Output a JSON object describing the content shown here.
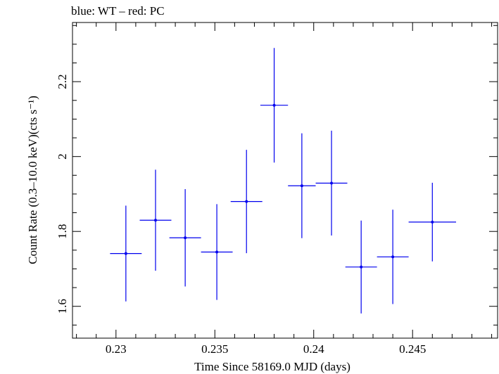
{
  "title": "blue: WT – red: PC",
  "chart_data": {
    "type": "scatter",
    "title": "blue: WT – red: PC",
    "xlabel": "Time Since 58169.0 MJD (days)",
    "ylabel": "Count Rate (0.3–10.0 keV)(cts s⁻¹)",
    "xlim": [
      0.2278,
      0.2493
    ],
    "ylim": [
      1.515,
      2.358
    ],
    "x_ticks": [
      {
        "value": 0.23,
        "label": "0.23"
      },
      {
        "value": 0.235,
        "label": "0.235"
      },
      {
        "value": 0.24,
        "label": "0.24"
      },
      {
        "value": 0.245,
        "label": "0.245"
      }
    ],
    "y_ticks": [
      {
        "value": 1.6,
        "label": "1.6"
      },
      {
        "value": 1.8,
        "label": "1.8"
      },
      {
        "value": 2.0,
        "label": "2"
      },
      {
        "value": 2.2,
        "label": "2.2"
      }
    ],
    "grid": false,
    "series": [
      {
        "color": "#0000ee",
        "points": [
          {
            "x": 0.2305,
            "xerr": 0.0008,
            "y": 1.741,
            "yerr": 0.128
          },
          {
            "x": 0.232,
            "xerr": 0.0008,
            "y": 1.83,
            "yerr": 0.135
          },
          {
            "x": 0.2335,
            "xerr": 0.0008,
            "y": 1.783,
            "yerr": 0.13
          },
          {
            "x": 0.2351,
            "xerr": 0.0008,
            "y": 1.745,
            "yerr": 0.128
          },
          {
            "x": 0.2366,
            "xerr": 0.0008,
            "y": 1.88,
            "yerr": 0.138
          },
          {
            "x": 0.238,
            "xerr": 0.0007,
            "y": 2.137,
            "yerr": 0.153
          },
          {
            "x": 0.2394,
            "xerr": 0.0007,
            "y": 1.922,
            "yerr": 0.14
          },
          {
            "x": 0.2409,
            "xerr": 0.0008,
            "y": 1.929,
            "yerr": 0.14
          },
          {
            "x": 0.2424,
            "xerr": 0.0008,
            "y": 1.705,
            "yerr": 0.124
          },
          {
            "x": 0.244,
            "xerr": 0.0008,
            "y": 1.732,
            "yerr": 0.126
          },
          {
            "x": 0.246,
            "xerr": 0.0012,
            "y": 1.825,
            "yerr": 0.105
          }
        ]
      }
    ]
  }
}
